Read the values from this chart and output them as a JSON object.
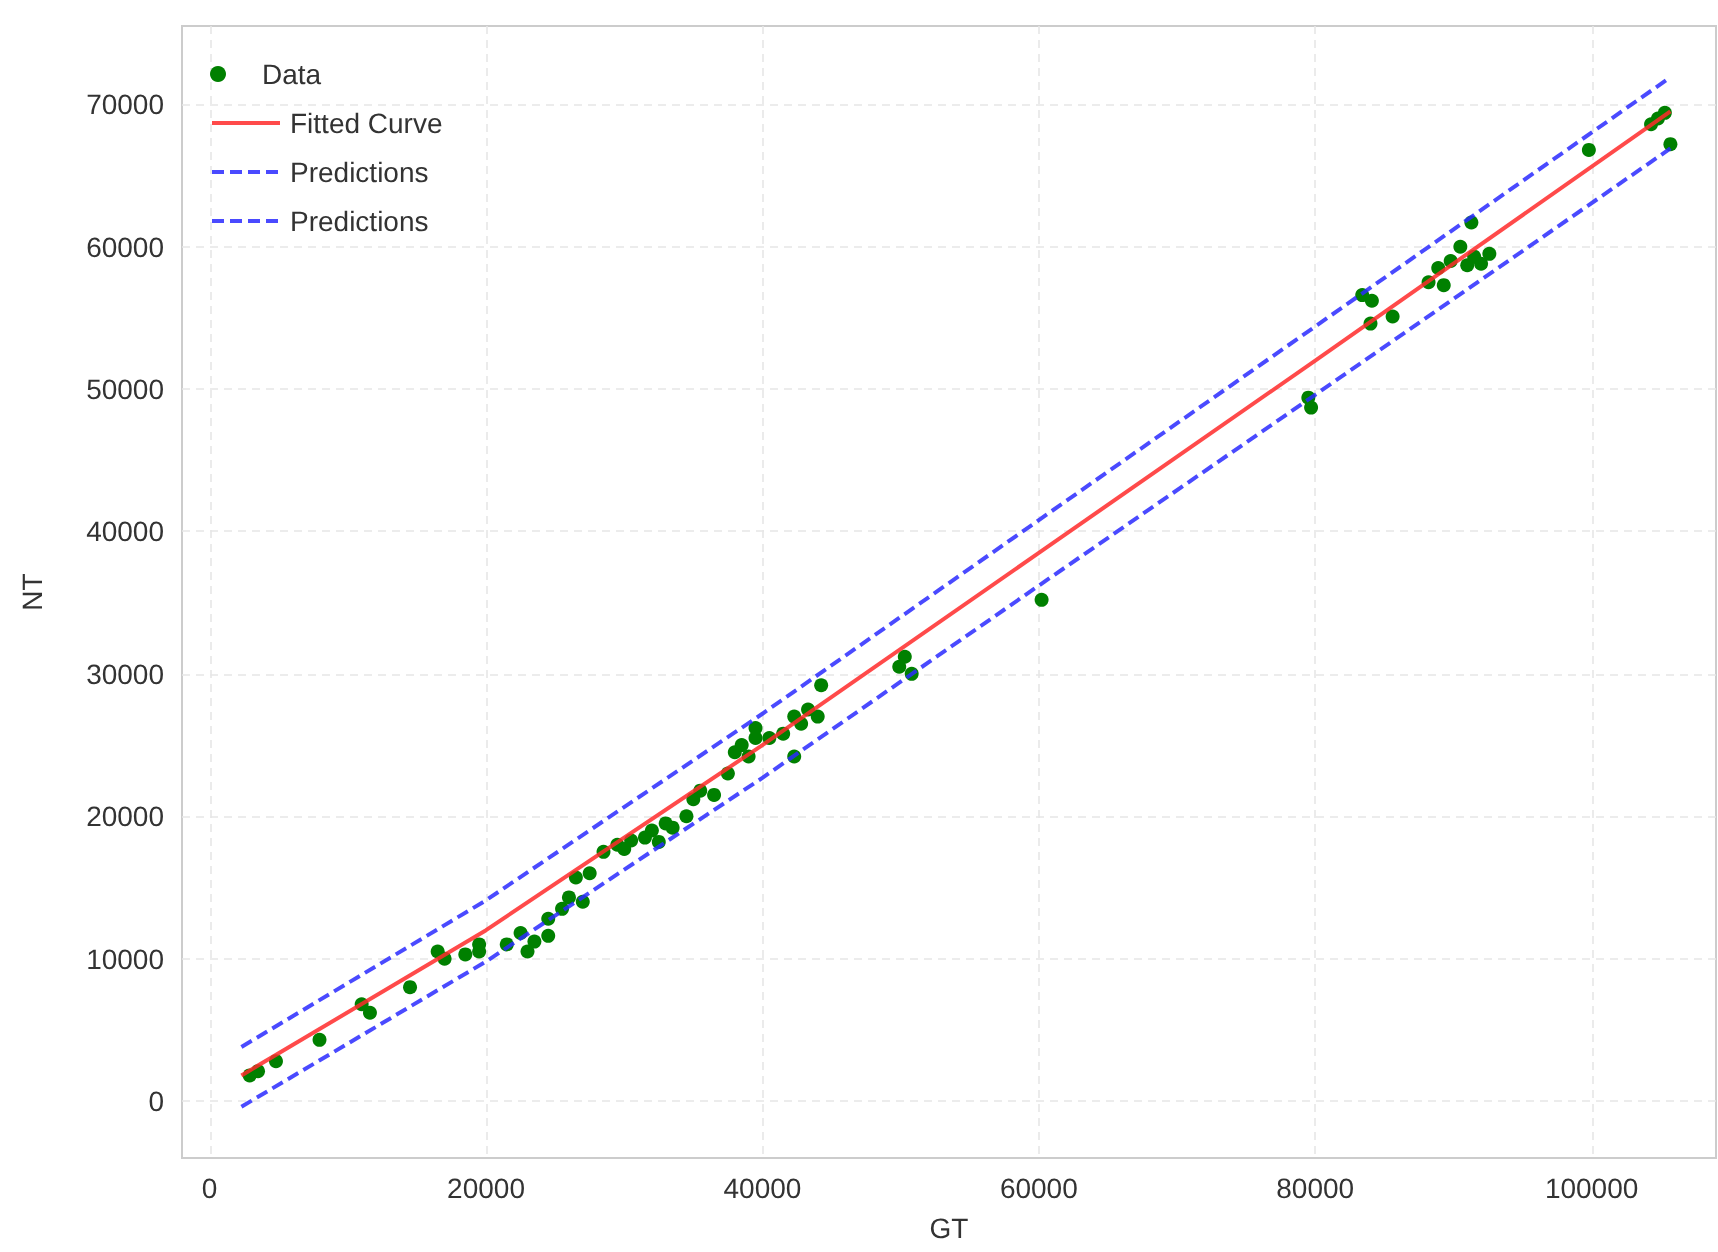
{
  "chart_data": {
    "type": "scatter",
    "xlabel": "GT",
    "ylabel": "NT",
    "xlim": [
      -2000,
      109000
    ],
    "ylim": [
      -4000,
      75500
    ],
    "xticks": [
      0,
      20000,
      40000,
      60000,
      80000,
      100000
    ],
    "yticks": [
      0,
      10000,
      20000,
      30000,
      40000,
      50000,
      60000,
      70000
    ],
    "grid": true,
    "legend": "top left",
    "series": [
      {
        "name": "Data",
        "type": "scatter",
        "marker": "circle",
        "color": "#008000",
        "x": [
          2900,
          3500,
          4800,
          7950,
          11000,
          11600,
          14500,
          16500,
          17000,
          18500,
          19500,
          19500,
          21500,
          22500,
          23000,
          23500,
          24500,
          24500,
          25500,
          26000,
          26500,
          27000,
          27500,
          28500,
          29500,
          30000,
          30500,
          31500,
          32000,
          32500,
          33000,
          33500,
          34500,
          35000,
          35500,
          36500,
          37500,
          38000,
          38500,
          39000,
          39500,
          39500,
          40500,
          41500,
          42300,
          42300,
          42800,
          43300,
          44000,
          44250,
          49900,
          50300,
          50800,
          60200,
          79500,
          79700,
          83400,
          84100,
          84000,
          85600,
          88200,
          88900,
          89300,
          89800,
          90500,
          91000,
          91500,
          92000,
          92600,
          91300,
          99800,
          104300,
          104800,
          105300,
          105700
        ],
        "values": [
          1800,
          2100,
          2800,
          4300,
          6800,
          6200,
          8000,
          10500,
          10000,
          10300,
          11000,
          10500,
          11000,
          11800,
          10500,
          11200,
          11600,
          12800,
          13500,
          14300,
          15700,
          14000,
          16000,
          17500,
          18000,
          17700,
          18300,
          18500,
          19000,
          18200,
          19500,
          19200,
          20000,
          21200,
          21800,
          21500,
          23000,
          24500,
          25000,
          24200,
          25500,
          26200,
          25500,
          25800,
          27000,
          24200,
          26500,
          27500,
          27000,
          29200,
          30500,
          31200,
          30000,
          35200,
          49400,
          48700,
          56600,
          56200,
          54600,
          55100,
          57500,
          58500,
          57300,
          59000,
          60000,
          58700,
          59300,
          58800,
          59500,
          61700,
          66800,
          68600,
          69000,
          69400,
          67200
        ]
      },
      {
        "name": "Fitted Curve",
        "type": "line",
        "marker": "none",
        "line_style": "solid",
        "color": "#ff2a2a",
        "x": [
          2300,
          20000,
          40000,
          60000,
          80000,
          105700
        ],
        "values": [
          1800,
          12000,
          25000,
          38500,
          52000,
          69500
        ]
      },
      {
        "name": "Predictions",
        "type": "line",
        "marker": "none",
        "line_style": "dashed",
        "color": "#2a2aff",
        "x": [
          2300,
          20000,
          40000,
          60000,
          80000,
          105700
        ],
        "values": [
          3800,
          14100,
          27200,
          40800,
          54400,
          71900
        ]
      },
      {
        "name": "Predictions",
        "type": "line",
        "marker": "none",
        "line_style": "dashed",
        "color": "#2a2aff",
        "x": [
          2300,
          20000,
          40000,
          60000,
          80000,
          105700
        ],
        "values": [
          -400,
          9800,
          22700,
          36200,
          49600,
          66900
        ]
      }
    ]
  }
}
